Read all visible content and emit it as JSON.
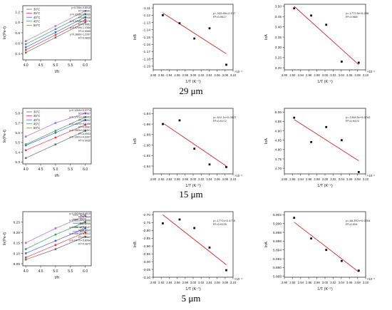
{
  "row_labels": [
    "29 μm",
    "15 μm",
    "5 μm"
  ],
  "chart_data": [
    {
      "type": "scatter",
      "title": "",
      "xlabel": "t/h",
      "ylabel": "ln(Pe-t)",
      "x_ticks": [
        "4.0",
        "4.5",
        "5.0",
        "5.5",
        "6.0"
      ],
      "x_range": [
        3.9,
        6.2
      ],
      "y_ticks": [
        "0.4",
        "0.6",
        "0.8",
        "1.0",
        "1.2"
      ],
      "y_range": [
        0.28,
        1.32
      ],
      "legend": [
        "30°C",
        "35°C",
        "40°C",
        "45°C",
        "50°C"
      ],
      "legend_position": "top-left",
      "series": [
        {
          "name": "30°C",
          "color": "#6e6e6e",
          "x": [
            4,
            5,
            6
          ],
          "y": [
            0.42,
            0.71,
            1.0
          ]
        },
        {
          "name": "35°C",
          "color": "#d94040",
          "x": [
            4,
            5,
            6
          ],
          "y": [
            0.47,
            0.76,
            1.05
          ]
        },
        {
          "name": "40°C",
          "color": "#4a63d8",
          "x": [
            4,
            5,
            6
          ],
          "y": [
            0.52,
            0.81,
            1.1
          ]
        },
        {
          "name": "45°C",
          "color": "#3aa06a",
          "x": [
            4,
            5,
            6
          ],
          "y": [
            0.58,
            0.87,
            1.16
          ]
        },
        {
          "name": "50°C",
          "color": "#b06ad6",
          "x": [
            4,
            5,
            6
          ],
          "y": [
            0.64,
            0.93,
            1.22
          ]
        }
      ],
      "equations": [
        "y=0.336x-0.8918",
        "R²=0.9981",
        "y=0.3236x-0.8966",
        "R²=0.9948",
        "y=0.3705x-0.8078",
        "R²=0.9952",
        "y=0.3709x-1.2385",
        "R²=0.9985",
        "y=0.3880x-1.2207",
        "R²=0.9833"
      ]
    },
    {
      "type": "scatter",
      "title": "",
      "xlabel": "1/T (K⁻¹)",
      "ylabel": "lnB",
      "x_multiplier": "×10⁻³",
      "x_ticks": [
        "2.90",
        "2.92",
        "2.94",
        "2.96",
        "2.98",
        "3.00",
        "3.02",
        "3.04",
        "3.06",
        "3.08",
        "3.10"
      ],
      "x_range": [
        2.9,
        3.1
      ],
      "y_ticks": [
        "-1.11",
        "-1.12",
        "-1.13",
        "-1.14",
        "-1.15",
        "-1.16",
        "-1.17",
        "-1.18",
        "-1.19"
      ],
      "y_range": [
        -1.195,
        -1.105
      ],
      "series": [
        {
          "name": "",
          "x": [
            2.924,
            2.966,
            3.003,
            3.041,
            3.083
          ],
          "y": [
            -1.12,
            -1.131,
            -1.152,
            -1.138,
            -1.188
          ]
        }
      ],
      "fit": {
        "x": [
          2.924,
          3.083
        ],
        "y": [
          -1.117,
          -1.173
        ]
      },
      "equations": [
        "y=-333.69x-0.137",
        "R²=0.9517"
      ]
    },
    {
      "type": "scatter",
      "title": "",
      "xlabel": "1/T (K⁻¹)",
      "ylabel": "lnA",
      "x_multiplier": "×10⁻³",
      "x_ticks": [
        "2.90",
        "2.92",
        "2.94",
        "2.96",
        "2.98",
        "3.00",
        "3.02",
        "3.04",
        "3.06",
        "3.08",
        "3.10"
      ],
      "x_range": [
        2.9,
        3.1
      ],
      "y_ticks": [
        "3.50",
        "3.45",
        "3.40",
        "3.35",
        "3.30",
        "3.25",
        "3.20"
      ],
      "y_range": [
        3.19,
        3.51
      ],
      "series": [
        {
          "name": "",
          "x": [
            2.924,
            2.966,
            3.003,
            3.041,
            3.083
          ],
          "y": [
            3.49,
            3.455,
            3.41,
            3.23,
            3.225
          ]
        }
      ],
      "fit": {
        "x": [
          2.924,
          3.083
        ],
        "y": [
          3.5,
          3.215
        ]
      },
      "equations": [
        "y=-1772.5x+8.236",
        "R²=0.968"
      ]
    },
    {
      "type": "scatter",
      "title": "",
      "xlabel": "t/h",
      "ylabel": "ln(Pe-t)",
      "x_ticks": [
        "4.0",
        "4.5",
        "5.0",
        "5.5",
        "6.0"
      ],
      "x_range": [
        3.9,
        6.2
      ],
      "y_ticks": [
        "5.3",
        "5.4",
        "5.5",
        "5.6",
        "5.7",
        "5.8"
      ],
      "y_range": [
        5.28,
        5.85
      ],
      "legend": [
        "30°C",
        "35°C",
        "40°C",
        "45°C",
        "50°C"
      ],
      "legend_position": "top-left",
      "series": [
        {
          "name": "30°C",
          "color": "#6e6e6e",
          "x": [
            4,
            5,
            6
          ],
          "y": [
            5.34,
            5.48,
            5.62
          ]
        },
        {
          "name": "35°C",
          "color": "#d94040",
          "x": [
            4,
            5,
            6
          ],
          "y": [
            5.42,
            5.55,
            5.68
          ]
        },
        {
          "name": "40°C",
          "color": "#4a63d8",
          "x": [
            4,
            5,
            6
          ],
          "y": [
            5.47,
            5.6,
            5.73
          ]
        },
        {
          "name": "45°C",
          "color": "#3aa06a",
          "x": [
            4,
            5,
            6
          ],
          "y": [
            5.48,
            5.62,
            5.76
          ]
        },
        {
          "name": "50°C",
          "color": "#b06ad6",
          "x": [
            4,
            5,
            6
          ],
          "y": [
            5.56,
            5.7,
            5.8
          ]
        }
      ],
      "equations": [
        "y=0.1264x+5.0774",
        "R²=0.9987",
        "y=0.1701x+4.9083",
        "R²=0.9992",
        "y=0.1427x+4.9188",
        "R²=0.9981",
        "y=0.1383x+4.8491",
        "R²=0.9993",
        "y=0.1302x+4.8397",
        "R²=0.9935"
      ]
    },
    {
      "type": "scatter",
      "title": "",
      "xlabel": "1/T (K⁻¹)",
      "ylabel": "lnB",
      "x_multiplier": "×10⁻³",
      "x_ticks": [
        "2.90",
        "2.92",
        "2.94",
        "2.96",
        "2.98",
        "3.00",
        "3.02",
        "3.04",
        "3.06",
        "3.08",
        "3.10"
      ],
      "x_range": [
        2.9,
        3.1
      ],
      "y_ticks": [
        "-1.84",
        "-1.86",
        "-1.88",
        "-1.90",
        "-1.92",
        "-1.94"
      ],
      "y_range": [
        -1.955,
        -1.83
      ],
      "series": [
        {
          "name": "",
          "x": [
            2.924,
            2.966,
            3.003,
            3.041,
            3.083
          ],
          "y": [
            -1.86,
            -1.853,
            -1.907,
            -1.937,
            -1.942
          ]
        }
      ],
      "fit": {
        "x": [
          2.924,
          3.083
        ],
        "y": [
          -1.858,
          -1.94
        ]
      },
      "equations": [
        "y=-612.1x+0.0572",
        "R²=0.9172"
      ]
    },
    {
      "type": "scatter",
      "title": "",
      "xlabel": "1/T (K⁻¹)",
      "ylabel": "lnA",
      "x_multiplier": "×10⁻³",
      "x_ticks": [
        "2.90",
        "2.92",
        "2.94",
        "2.96",
        "2.98",
        "3.00",
        "3.02",
        "3.04",
        "3.06",
        "3.08",
        "3.10"
      ],
      "x_range": [
        2.9,
        3.1
      ],
      "y_ticks": [
        "5.00",
        "4.95",
        "4.90",
        "4.85",
        "4.80",
        "4.75",
        "4.70"
      ],
      "y_range": [
        4.67,
        5.02
      ],
      "series": [
        {
          "name": "",
          "x": [
            2.924,
            2.966,
            3.003,
            3.041,
            3.083
          ],
          "y": [
            4.97,
            4.84,
            4.92,
            4.85,
            4.68
          ]
        }
      ],
      "fit": {
        "x": [
          2.924,
          3.083
        ],
        "y": [
          4.96,
          4.74
        ]
      },
      "equations": [
        "y=-1348.5x+5.0792",
        "R²=0.9470"
      ]
    },
    {
      "type": "scatter",
      "title": "",
      "xlabel": "t/h",
      "ylabel": "ln(Pe-t)",
      "x_ticks": [
        "4.0",
        "4.5",
        "5.0",
        "5.5",
        "6.0"
      ],
      "x_range": [
        3.9,
        6.2
      ],
      "y_ticks": [
        "6.05",
        "6.10",
        "6.15",
        "6.20",
        "6.25"
      ],
      "y_range": [
        6.04,
        6.3
      ],
      "legend": [
        "30°C",
        "35°C",
        "40°C",
        "45°C",
        "50°C"
      ],
      "legend_position": "top-right",
      "series": [
        {
          "name": "30°C",
          "color": "#6e6e6e",
          "x": [
            4,
            5,
            6
          ],
          "y": [
            6.07,
            6.12,
            6.18
          ]
        },
        {
          "name": "35°C",
          "color": "#d94040",
          "x": [
            4,
            5,
            6
          ],
          "y": [
            6.08,
            6.14,
            6.2
          ]
        },
        {
          "name": "40°C",
          "color": "#4a63d8",
          "x": [
            4,
            5,
            6
          ],
          "y": [
            6.1,
            6.16,
            6.22
          ]
        },
        {
          "name": "45°C",
          "color": "#3aa06a",
          "x": [
            4,
            5,
            6
          ],
          "y": [
            6.12,
            6.19,
            6.25
          ]
        },
        {
          "name": "50°C",
          "color": "#b06ad6",
          "x": [
            4,
            5,
            6
          ],
          "y": [
            6.15,
            6.22,
            6.28
          ]
        }
      ],
      "equations": [
        "y=0.0634x+5.8015",
        "R²=0.9829",
        "y=0.0651x+5.8066",
        "R²=0.9955",
        "y=0.0661x+5.8137",
        "R²=0.9890",
        "y=0.0591x+5.8512",
        "R²=0.9882",
        "y=0.0477x+5.8994",
        "R²=0.9872"
      ]
    },
    {
      "type": "scatter",
      "title": "",
      "xlabel": "1/T (K⁻¹)",
      "ylabel": "lnB",
      "x_multiplier": "×10⁻³",
      "x_ticks": [
        "2.90",
        "2.92",
        "2.94",
        "2.96",
        "2.98",
        "3.00",
        "3.02",
        "3.04",
        "3.06",
        "3.08",
        "3.10"
      ],
      "x_range": [
        2.9,
        3.1
      ],
      "y_ticks": [
        "-2.70",
        "-2.75",
        "-2.80",
        "-2.85",
        "-2.90",
        "-2.95",
        "-3.00",
        "-3.05",
        "-3.10"
      ],
      "y_range": [
        -3.1,
        -2.68
      ],
      "series": [
        {
          "name": "",
          "x": [
            2.924,
            2.966,
            3.003,
            3.041,
            3.083
          ],
          "y": [
            -2.755,
            -2.73,
            -2.785,
            -2.91,
            -3.055
          ]
        }
      ],
      "fit": {
        "x": [
          2.924,
          3.083
        ],
        "y": [
          -2.7,
          -3.02
        ]
      },
      "equations": [
        "y=-1771x+2.4719",
        "R²=0.9126"
      ]
    },
    {
      "type": "scatter",
      "title": "",
      "xlabel": "1/T (K⁻¹)",
      "ylabel": "lnA",
      "x_multiplier": "×10⁻³",
      "x_ticks": [
        "2.90",
        "2.92",
        "2.94",
        "2.96",
        "2.98",
        "3.00",
        "3.02",
        "3.04",
        "3.06",
        "3.08",
        "3.10"
      ],
      "x_range": [
        2.9,
        3.1
      ],
      "y_ticks": [
        "5.902",
        "5.900",
        "5.898",
        "5.896",
        "5.894",
        "5.892",
        "5.890",
        "5.888"
      ],
      "y_range": [
        5.8878,
        5.9027
      ],
      "series": [
        {
          "name": "",
          "x": [
            2.924,
            2.966,
            3.003,
            3.041,
            3.083
          ],
          "y": [
            5.9013,
            5.8966,
            5.894,
            5.8915,
            5.8893
          ]
        }
      ],
      "fit": {
        "x": [
          2.924,
          3.083
        ],
        "y": [
          5.9003,
          5.889
        ]
      },
      "equations": [
        "y=-68.397x+6.0094",
        "R²=0.954"
      ]
    }
  ]
}
